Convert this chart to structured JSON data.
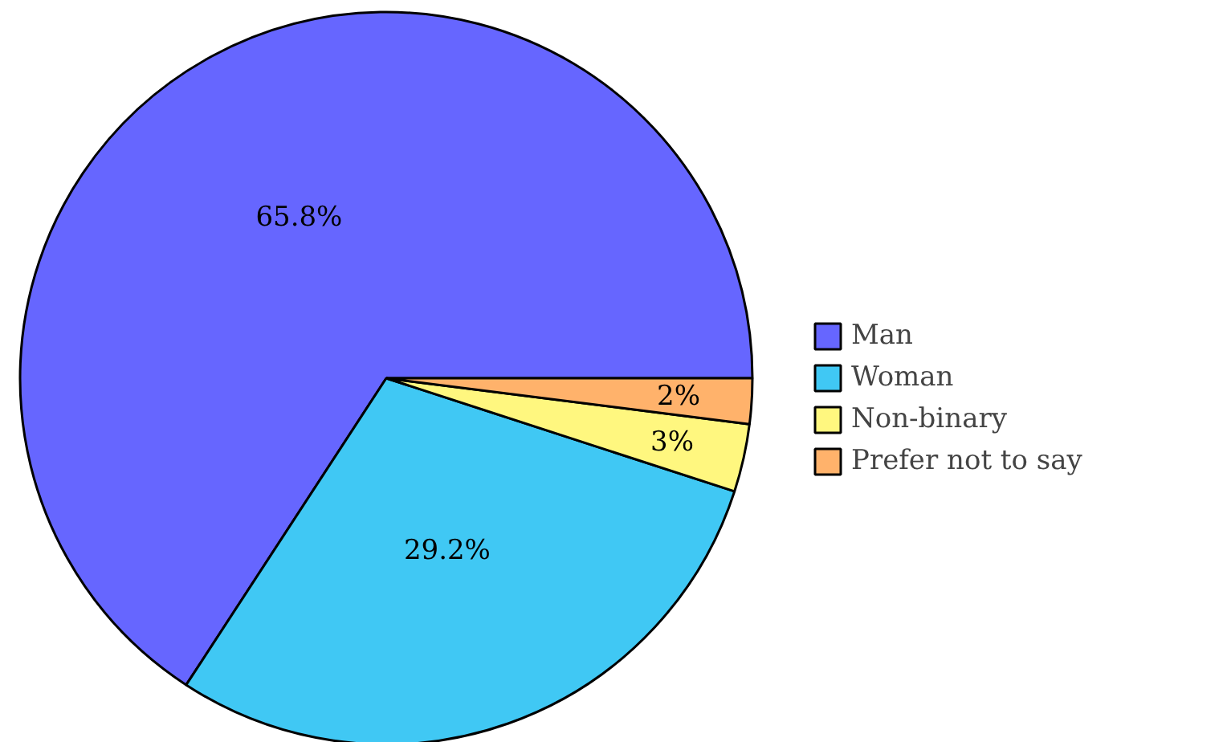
{
  "chart_data": {
    "type": "pie",
    "categories": [
      "Man",
      "Woman",
      "Non-binary",
      "Prefer not to say"
    ],
    "values": [
      65.8,
      29.2,
      3,
      2
    ],
    "colors": [
      "#6666ff",
      "#40c8f4",
      "#fff77f",
      "#ffb26b"
    ],
    "value_labels": [
      "65.8%",
      "29.2%",
      "3%",
      "2%"
    ],
    "legend": "right"
  }
}
